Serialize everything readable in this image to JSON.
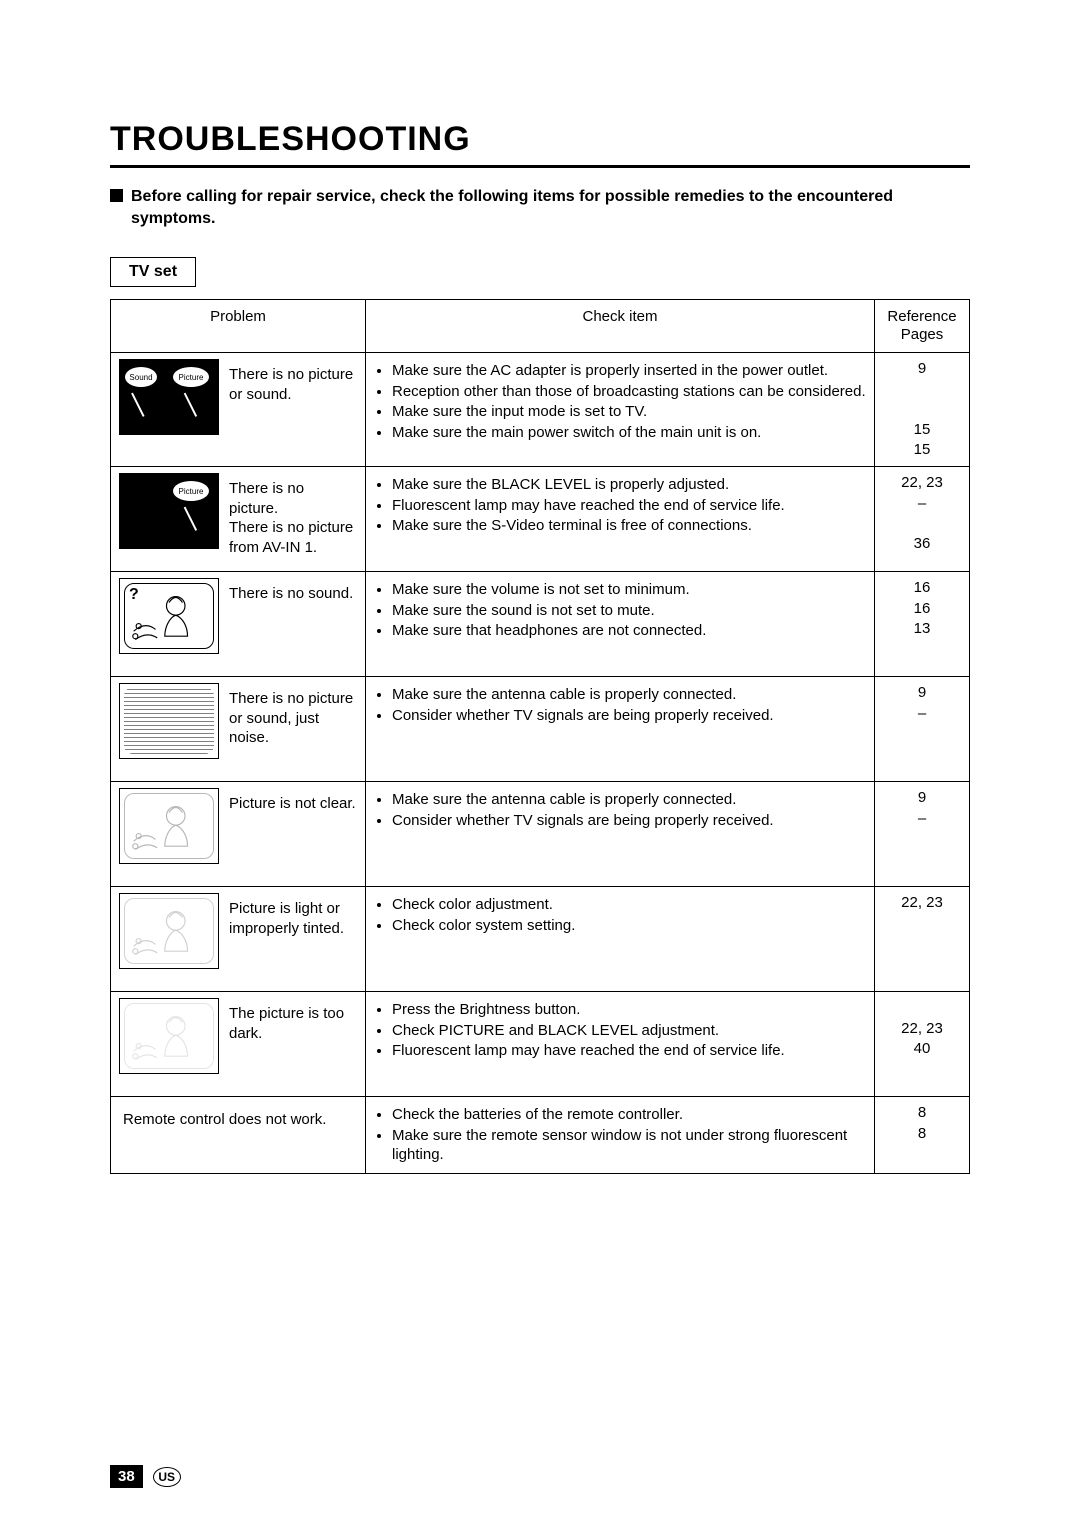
{
  "page": {
    "title": "TROUBLESHOOTING",
    "intro": "Before calling for repair service, check the following items for possible remedies to the encountered symptoms.",
    "section_label": "TV set",
    "page_number": "38",
    "region_code": "US"
  },
  "colors": {
    "text": "#000000",
    "background": "#ffffff",
    "rule": "#000000"
  },
  "table": {
    "headers": {
      "problem": "Problem",
      "check": "Check item",
      "reference": "Reference Pages"
    },
    "rows": [
      {
        "thumb": "no-pic-no-sound",
        "problem": "There is no picture or sound.",
        "checks": [
          "Make sure the AC adapter is properly inserted in the power outlet.",
          "Reception other than those of broadcasting stations can be considered.",
          "Make sure the input mode is set to TV.",
          "Make sure the main power switch of the main unit is on."
        ],
        "refs": "9\n\n\n15\n15"
      },
      {
        "thumb": "no-picture",
        "problem": "There is no picture.\nThere is no picture from AV-IN 1.",
        "checks": [
          "Make sure the BLACK LEVEL is properly adjusted.",
          "Fluorescent lamp may have reached the end of service life.",
          "Make sure the S-Video terminal is free of connections."
        ],
        "refs": "22, 23\n–\n\n36"
      },
      {
        "thumb": "no-sound",
        "problem": "There is no sound.",
        "checks": [
          "Make sure the volume is not set to minimum.",
          "Make sure the sound is not set to mute.",
          "Make sure that headphones are not connected."
        ],
        "refs": "16\n16\n13"
      },
      {
        "thumb": "noise",
        "problem": "There is no picture or sound, just noise.",
        "checks": [
          "Make sure the antenna cable is properly connected.",
          "Consider whether TV signals are being properly received."
        ],
        "refs": "9\n–"
      },
      {
        "thumb": "not-clear",
        "problem": "Picture is not clear.",
        "checks": [
          "Make sure the antenna cable is properly connected.",
          "Consider whether TV signals are being properly received."
        ],
        "refs": "9\n–"
      },
      {
        "thumb": "tinted",
        "problem": "Picture is light or improperly tinted.",
        "checks": [
          "Check color adjustment.",
          "Check color system setting."
        ],
        "refs": "22, 23"
      },
      {
        "thumb": "too-dark",
        "problem": "The picture is too dark.",
        "checks": [
          "Press the Brightness button.",
          "Check PICTURE and BLACK LEVEL adjustment.",
          "Fluorescent lamp may have reached the end of service life."
        ],
        "refs": "\n22, 23\n40"
      },
      {
        "thumb": "none",
        "problem_full": "Remote control does not work.",
        "checks": [
          "Check the batteries of the remote controller.",
          "Make sure the remote sensor window is not under strong fluorescent lighting."
        ],
        "refs": "8\n8"
      }
    ]
  }
}
